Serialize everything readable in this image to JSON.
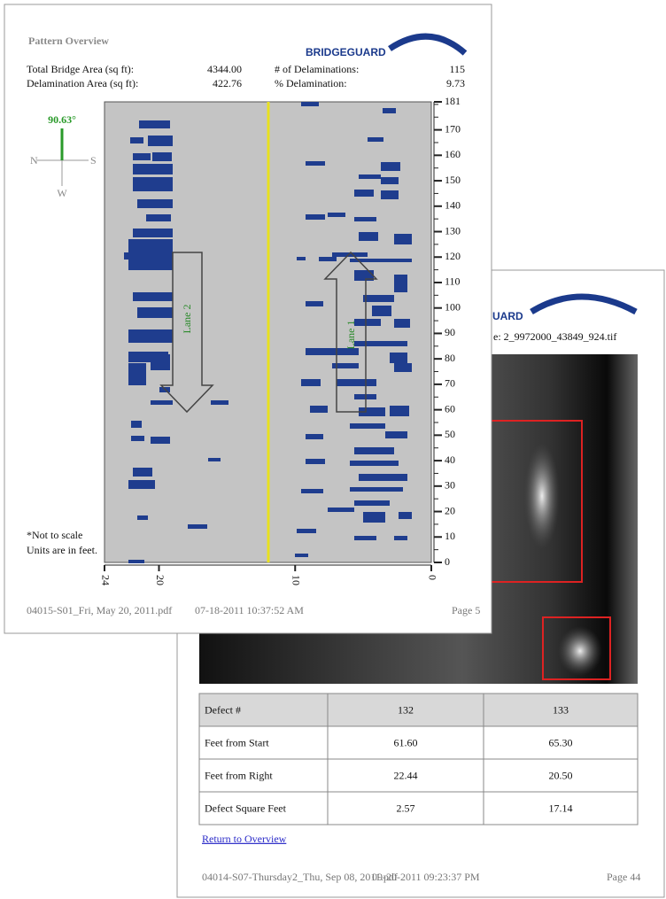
{
  "overview": {
    "title": "Pattern Overview",
    "logo": "BRIDGEGUARD",
    "stats": [
      {
        "label": "Total Bridge Area (sq ft):",
        "value": "4344.00"
      },
      {
        "label": "# of Delaminations:",
        "value": "115"
      },
      {
        "label": "Delamination Area (sq ft):",
        "value": "422.76"
      },
      {
        "label": "% Delamination:",
        "value": "9.73"
      }
    ],
    "compass": {
      "heading": "90.63°",
      "n": "N",
      "s": "S",
      "w": "W"
    },
    "y_axis": {
      "min": 0,
      "max": 181,
      "labels": [
        0,
        10,
        20,
        30,
        40,
        50,
        60,
        70,
        80,
        90,
        100,
        110,
        120,
        130,
        140,
        150,
        160,
        170,
        181
      ]
    },
    "x_axis": {
      "min": 0,
      "max": 24,
      "labels": [
        24,
        20,
        10,
        0
      ]
    },
    "lanes": [
      "Lane 2",
      "Lane 1"
    ],
    "notes": [
      "*Not to scale",
      "Units are in feet."
    ],
    "footer": [
      "04015-S01_Fri, May 20, 2011.pdf",
      "07-18-2011 10:37:52 AM",
      "Page 5"
    ]
  },
  "detail": {
    "logo": "BRIDGEGUARD",
    "file": "e: 2_9972000_43849_924.tif",
    "table": {
      "rows": [
        [
          "Defect #",
          "132",
          "133"
        ],
        [
          "Feet from Start",
          "61.60",
          "65.30"
        ],
        [
          "Feet from Right",
          "22.44",
          "20.50"
        ],
        [
          "Defect Square Feet",
          "2.57",
          "17.14"
        ]
      ]
    },
    "link": "Return to Overview",
    "footer": [
      "04014-S07-Thursday2_Thu, Sep 08, 2011.pdf",
      "09-20-2011 09:23:37 PM",
      "Page 44"
    ]
  }
}
